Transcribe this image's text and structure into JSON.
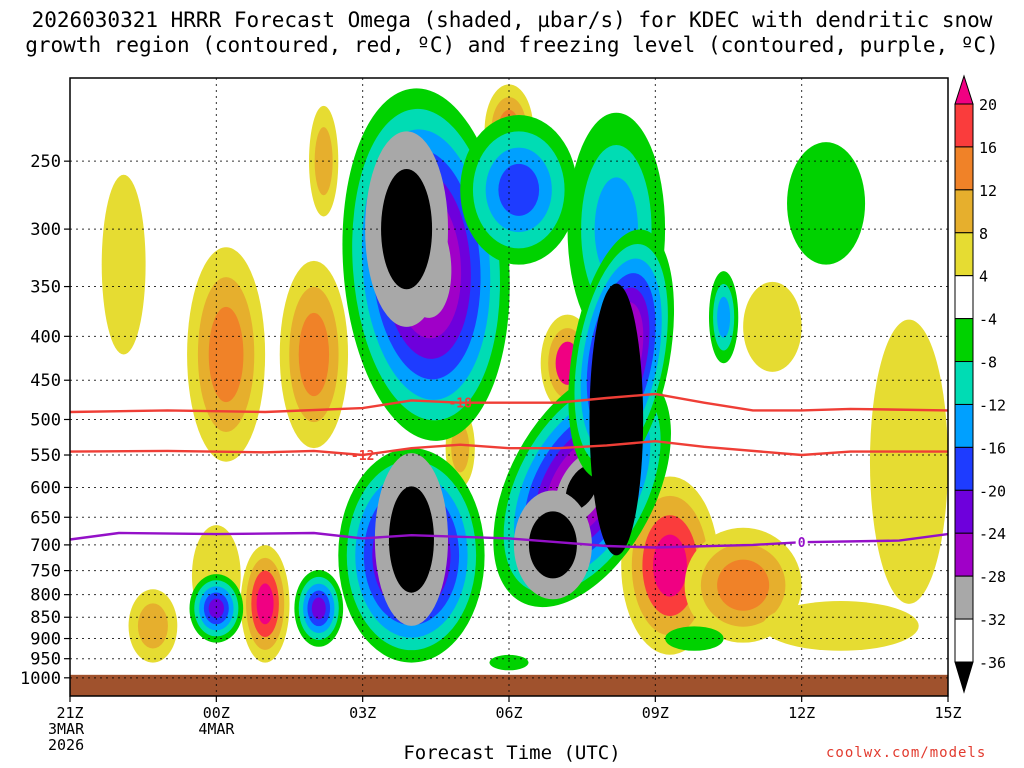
{
  "title": {
    "line1": "2026030321 HRRR Forecast Omega (shaded, µbar/s) for KDEC with dendritic snow",
    "line2": "growth region (contoured, red, ºC) and freezing level (contoured, purple, ºC)"
  },
  "xlabel": "Forecast Time (UTC)",
  "credit": "coolwx.com/models",
  "colors": {
    "c_m36": "#000000",
    "c_m32": "#a8a8a8",
    "c_m28": "#a000c8",
    "c_m24": "#6e00dc",
    "c_m20": "#1e3cff",
    "c_m16": "#00a0ff",
    "c_m12": "#00dcb4",
    "c_m8": "#00d200",
    "c_m4": "#ffffff",
    "c_4": "#e6dc32",
    "c_8": "#e6af2d",
    "c_12": "#f08228",
    "c_16": "#fa3c3c",
    "c_20": "#f00082",
    "dgz": "#ef3e36",
    "freezing": "#9410c8",
    "ground": "#a0522d"
  },
  "chart_data": {
    "type": "time-height contour",
    "x_axis": {
      "label": "Forecast Time (UTC)",
      "range_hours": [
        0,
        18
      ],
      "ticks": [
        {
          "h": 0,
          "label": [
            "21Z",
            "3MAR",
            "2026"
          ]
        },
        {
          "h": 3,
          "label": [
            "00Z",
            "4MAR"
          ]
        },
        {
          "h": 6,
          "label": [
            "03Z"
          ]
        },
        {
          "h": 9,
          "label": [
            "06Z"
          ]
        },
        {
          "h": 12,
          "label": [
            "09Z"
          ]
        },
        {
          "h": 15,
          "label": [
            "12Z"
          ]
        },
        {
          "h": 18,
          "label": [
            "15Z"
          ]
        }
      ]
    },
    "y_axis": {
      "units": "hPa",
      "scale": "log-pressure",
      "range": [
        1050,
        200
      ],
      "ticks": [
        250,
        300,
        350,
        400,
        450,
        500,
        550,
        600,
        650,
        700,
        750,
        800,
        850,
        900,
        950,
        1000
      ],
      "grid": true
    },
    "colorbar": {
      "labels": [
        "20",
        "16",
        "12",
        "8",
        "4",
        "-4",
        "-8",
        "-12",
        "-16",
        "-20",
        "-24",
        "-28",
        "-32",
        "-36"
      ],
      "placement": "right"
    },
    "dgz_lines": [
      {
        "label": "-18",
        "label_h": 8.0,
        "points": [
          [
            0,
            490
          ],
          [
            2,
            488
          ],
          [
            4,
            490
          ],
          [
            6,
            485
          ],
          [
            7,
            475
          ],
          [
            8,
            478
          ],
          [
            10,
            478
          ],
          [
            11,
            472
          ],
          [
            12,
            467
          ],
          [
            13,
            478
          ],
          [
            14,
            488
          ],
          [
            15,
            488
          ],
          [
            16,
            486
          ],
          [
            18,
            488
          ]
        ]
      },
      {
        "label": "-12",
        "label_h": 6.0,
        "points": [
          [
            0,
            545
          ],
          [
            2,
            544
          ],
          [
            4,
            546
          ],
          [
            5,
            544
          ],
          [
            6,
            550
          ],
          [
            7,
            540
          ],
          [
            8,
            535
          ],
          [
            9,
            540
          ],
          [
            10,
            540
          ],
          [
            11,
            536
          ],
          [
            12,
            530
          ],
          [
            13,
            538
          ],
          [
            15,
            550
          ],
          [
            16,
            545
          ],
          [
            18,
            545
          ]
        ]
      }
    ],
    "freezing_line": {
      "label": "0",
      "label_h": 15.0,
      "points": [
        [
          0,
          690
        ],
        [
          1,
          678
        ],
        [
          3,
          680
        ],
        [
          5,
          678
        ],
        [
          6,
          688
        ],
        [
          7,
          682
        ],
        [
          9,
          688
        ],
        [
          10,
          695
        ],
        [
          11,
          702
        ],
        [
          12,
          705
        ],
        [
          14,
          700
        ],
        [
          15,
          695
        ],
        [
          17,
          692
        ],
        [
          18,
          680
        ]
      ]
    }
  }
}
